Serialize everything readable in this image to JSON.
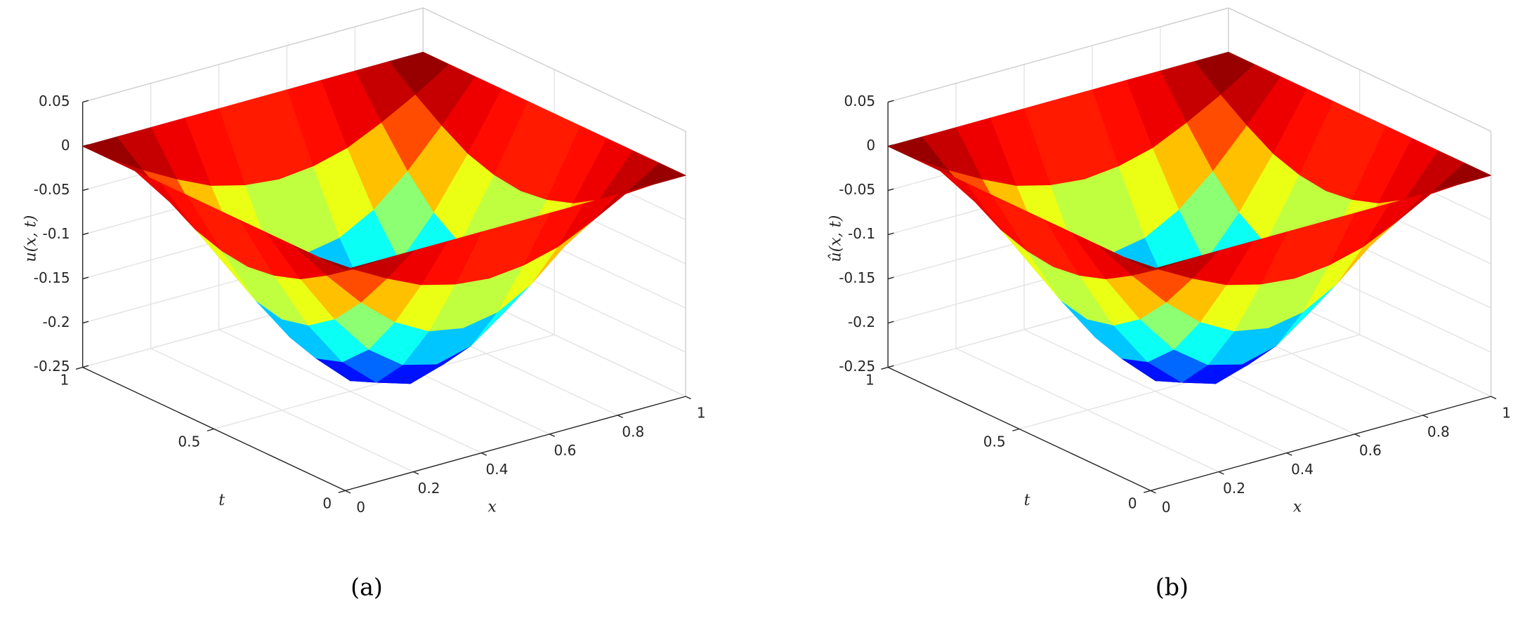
{
  "chart_data": [
    {
      "type": "surface",
      "colormap": "jet",
      "caption": "(a)",
      "xlabel": "x",
      "ylabel": "t",
      "zlabel": "u(x, t)",
      "x": [
        0,
        0.1,
        0.2,
        0.3,
        0.4,
        0.5,
        0.6,
        0.7,
        0.8,
        0.9,
        1
      ],
      "y": [
        0,
        0.1,
        0.2,
        0.3,
        0.4,
        0.5,
        0.6,
        0.7,
        0.8,
        0.9,
        1
      ],
      "z": [
        [
          0,
          0,
          0,
          0,
          0,
          0,
          0,
          0,
          0,
          0,
          0
        ],
        [
          0,
          -0.024,
          -0.045,
          -0.063,
          -0.073,
          -0.077,
          -0.073,
          -0.063,
          -0.045,
          -0.024,
          0
        ],
        [
          0,
          -0.045,
          -0.086,
          -0.119,
          -0.14,
          -0.147,
          -0.14,
          -0.119,
          -0.086,
          -0.045,
          0
        ],
        [
          0,
          -0.063,
          -0.119,
          -0.164,
          -0.192,
          -0.202,
          -0.192,
          -0.164,
          -0.119,
          -0.063,
          0
        ],
        [
          0,
          -0.073,
          -0.14,
          -0.192,
          -0.226,
          -0.238,
          -0.226,
          -0.192,
          -0.14,
          -0.073,
          0
        ],
        [
          0,
          -0.077,
          -0.147,
          -0.202,
          -0.238,
          -0.25,
          -0.238,
          -0.202,
          -0.147,
          -0.077,
          0
        ],
        [
          0,
          -0.073,
          -0.14,
          -0.192,
          -0.226,
          -0.238,
          -0.226,
          -0.192,
          -0.14,
          -0.073,
          0
        ],
        [
          0,
          -0.063,
          -0.119,
          -0.164,
          -0.192,
          -0.202,
          -0.192,
          -0.164,
          -0.119,
          -0.063,
          0
        ],
        [
          0,
          -0.045,
          -0.086,
          -0.119,
          -0.14,
          -0.147,
          -0.14,
          -0.119,
          -0.086,
          -0.045,
          0
        ],
        [
          0,
          -0.024,
          -0.045,
          -0.063,
          -0.073,
          -0.077,
          -0.073,
          -0.063,
          -0.045,
          -0.024,
          0
        ],
        [
          0,
          0,
          0,
          0,
          0,
          0,
          0,
          0,
          0,
          0,
          0
        ]
      ],
      "xlim": [
        0,
        1
      ],
      "xticks": [
        0,
        0.2,
        0.4,
        0.6,
        0.8,
        1
      ],
      "ylim": [
        0,
        1
      ],
      "yticks": [
        0,
        0.5,
        1
      ],
      "zlim": [
        -0.25,
        0.05
      ],
      "zticks": [
        -0.25,
        -0.2,
        -0.15,
        -0.1,
        -0.05,
        0,
        0.05
      ],
      "grid": true
    },
    {
      "type": "surface",
      "colormap": "jet",
      "caption": "(b)",
      "xlabel": "x",
      "ylabel": "t",
      "zlabel": "û(x, t)",
      "x": [
        0,
        0.1,
        0.2,
        0.3,
        0.4,
        0.5,
        0.6,
        0.7,
        0.8,
        0.9,
        1
      ],
      "y": [
        0,
        0.1,
        0.2,
        0.3,
        0.4,
        0.5,
        0.6,
        0.7,
        0.8,
        0.9,
        1
      ],
      "z": [
        [
          0,
          0,
          0,
          0,
          0,
          0,
          0,
          0,
          0,
          0,
          0
        ],
        [
          0,
          -0.024,
          -0.045,
          -0.063,
          -0.073,
          -0.077,
          -0.073,
          -0.063,
          -0.045,
          -0.024,
          0
        ],
        [
          0,
          -0.045,
          -0.086,
          -0.119,
          -0.14,
          -0.147,
          -0.14,
          -0.119,
          -0.086,
          -0.045,
          0
        ],
        [
          0,
          -0.063,
          -0.119,
          -0.164,
          -0.192,
          -0.202,
          -0.192,
          -0.164,
          -0.119,
          -0.063,
          0
        ],
        [
          0,
          -0.073,
          -0.14,
          -0.192,
          -0.226,
          -0.238,
          -0.226,
          -0.192,
          -0.14,
          -0.073,
          0
        ],
        [
          0,
          -0.077,
          -0.147,
          -0.202,
          -0.238,
          -0.25,
          -0.238,
          -0.202,
          -0.147,
          -0.077,
          0
        ],
        [
          0,
          -0.073,
          -0.14,
          -0.192,
          -0.226,
          -0.238,
          -0.226,
          -0.192,
          -0.14,
          -0.073,
          0
        ],
        [
          0,
          -0.063,
          -0.119,
          -0.164,
          -0.192,
          -0.202,
          -0.192,
          -0.164,
          -0.119,
          -0.063,
          0
        ],
        [
          0,
          -0.045,
          -0.086,
          -0.119,
          -0.14,
          -0.147,
          -0.14,
          -0.119,
          -0.086,
          -0.045,
          0
        ],
        [
          0,
          -0.024,
          -0.045,
          -0.063,
          -0.073,
          -0.077,
          -0.073,
          -0.063,
          -0.045,
          -0.024,
          0
        ],
        [
          0,
          0,
          0,
          0,
          0,
          0,
          0,
          0,
          0,
          0,
          0
        ]
      ],
      "xlim": [
        0,
        1
      ],
      "xticks": [
        0,
        0.2,
        0.4,
        0.6,
        0.8,
        1
      ],
      "ylim": [
        0,
        1
      ],
      "yticks": [
        0,
        0.5,
        1
      ],
      "zlim": [
        -0.25,
        0.05
      ],
      "zticks": [
        -0.25,
        -0.2,
        -0.15,
        -0.1,
        -0.05,
        0,
        0.05
      ],
      "grid": true
    }
  ]
}
